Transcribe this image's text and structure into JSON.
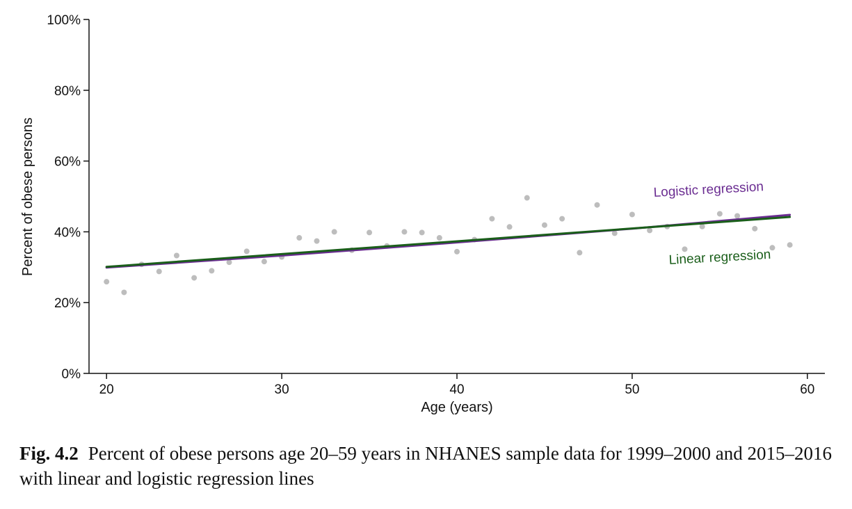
{
  "chart_data": {
    "type": "scatter",
    "xlabel": "Age (years)",
    "ylabel": "Percent of obese persons",
    "xlim": [
      19,
      61
    ],
    "ylim": [
      0,
      100
    ],
    "x_ticks": [
      20,
      30,
      40,
      50,
      60
    ],
    "y_ticks": [
      0,
      20,
      40,
      60,
      80,
      100
    ],
    "y_tick_labels": [
      "0%",
      "20%",
      "40%",
      "60%",
      "80%",
      "100%"
    ],
    "grid": false,
    "points": {
      "color": "#bdbdbd",
      "x": [
        20,
        21,
        22,
        23,
        24,
        25,
        26,
        27,
        28,
        29,
        30,
        31,
        32,
        33,
        34,
        35,
        36,
        37,
        38,
        39,
        40,
        41,
        42,
        43,
        44,
        45,
        46,
        47,
        48,
        49,
        50,
        51,
        52,
        53,
        54,
        55,
        56,
        57,
        58,
        59
      ],
      "y": [
        25.9,
        22.9,
        30.8,
        28.8,
        33.3,
        27.0,
        29.0,
        31.4,
        34.5,
        31.6,
        32.9,
        38.3,
        37.4,
        40.0,
        34.8,
        39.8,
        36.0,
        40.0,
        39.8,
        38.3,
        34.4,
        37.8,
        43.7,
        41.4,
        49.6,
        41.9,
        43.7,
        34.1,
        47.6,
        39.6,
        44.9,
        40.4,
        41.5,
        35.1,
        41.5,
        45.1,
        44.5,
        40.9,
        35.5,
        36.3
      ]
    },
    "series": [
      {
        "name": "Logistic regression",
        "color": "#6a2c91",
        "x": [
          20,
          30,
          40,
          50,
          59
        ],
        "y": [
          29.9,
          33.3,
          37.0,
          40.9,
          44.8
        ]
      },
      {
        "name": "Linear regression",
        "color": "#1a5e1a",
        "x": [
          20,
          59
        ],
        "y": [
          30.1,
          44.2
        ]
      }
    ]
  },
  "caption": {
    "fig_num": "Fig. 4.2",
    "text": "Percent of obese persons age 20–59 years in NHANES sample data for 1999–2000 and 2015–2016 with linear and logistic regression lines"
  }
}
